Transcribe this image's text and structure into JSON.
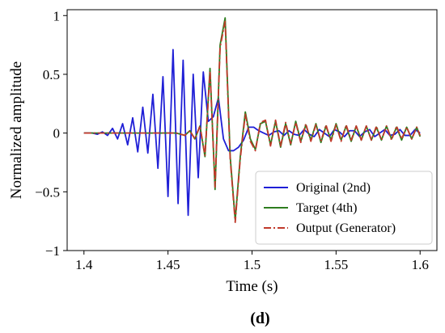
{
  "chart_data": {
    "type": "line",
    "panel_label": "(d)",
    "xlabel": "Time (s)",
    "ylabel": "Normalized amplitude",
    "xlim": [
      1.39,
      1.61
    ],
    "ylim": [
      -1.0,
      1.05
    ],
    "xticks": [
      1.4,
      1.45,
      1.5,
      1.55,
      1.6
    ],
    "xtick_labels": [
      "1.4",
      "1.45",
      "1.5",
      "1.55",
      "1.6"
    ],
    "yticks": [
      -1,
      -0.5,
      0,
      0.5,
      1
    ],
    "ytick_labels": [
      "−1",
      "−0.5",
      "0",
      "0.5",
      "1"
    ],
    "grid": false,
    "legend_position": "lower-right",
    "series": [
      {
        "name": "Original (2nd)",
        "color": "#1f1fd6",
        "style": "solid",
        "x": [
          1.4,
          1.405,
          1.408,
          1.411,
          1.414,
          1.417,
          1.42,
          1.423,
          1.426,
          1.429,
          1.432,
          1.435,
          1.438,
          1.441,
          1.444,
          1.447,
          1.45,
          1.453,
          1.456,
          1.459,
          1.462,
          1.465,
          1.468,
          1.471,
          1.474,
          1.477,
          1.48,
          1.483,
          1.486,
          1.489,
          1.492,
          1.495,
          1.498,
          1.501,
          1.504,
          1.507,
          1.51,
          1.513,
          1.516,
          1.519,
          1.522,
          1.525,
          1.528,
          1.531,
          1.534,
          1.537,
          1.54,
          1.543,
          1.546,
          1.549,
          1.552,
          1.555,
          1.558,
          1.561,
          1.564,
          1.567,
          1.57,
          1.573,
          1.576,
          1.579,
          1.582,
          1.585,
          1.588,
          1.591,
          1.594,
          1.597,
          1.6
        ],
        "y": [
          0.0,
          0.0,
          -0.01,
          0.01,
          -0.02,
          0.04,
          -0.05,
          0.08,
          -0.1,
          0.13,
          -0.16,
          0.22,
          -0.17,
          0.33,
          -0.3,
          0.48,
          -0.54,
          0.71,
          -0.6,
          0.62,
          -0.7,
          0.5,
          -0.38,
          0.52,
          0.1,
          0.14,
          0.3,
          -0.05,
          -0.15,
          -0.15,
          -0.12,
          -0.06,
          0.05,
          0.05,
          0.02,
          0.0,
          -0.02,
          0.01,
          0.02,
          -0.02,
          0.02,
          -0.01,
          -0.02,
          0.03,
          -0.01,
          -0.03,
          0.03,
          0.0,
          -0.03,
          0.03,
          0.01,
          -0.03,
          0.02,
          0.02,
          -0.03,
          0.01,
          0.03,
          -0.03,
          0.0,
          0.03,
          -0.02,
          -0.01,
          0.03,
          -0.02,
          -0.02,
          0.03,
          0.0
        ]
      },
      {
        "name": "Target (4th)",
        "color": "#2e7d1f",
        "style": "solid",
        "x": [
          1.4,
          1.405,
          1.41,
          1.415,
          1.42,
          1.425,
          1.43,
          1.435,
          1.44,
          1.445,
          1.45,
          1.455,
          1.46,
          1.463,
          1.466,
          1.469,
          1.472,
          1.475,
          1.478,
          1.481,
          1.484,
          1.487,
          1.49,
          1.493,
          1.496,
          1.499,
          1.502,
          1.505,
          1.508,
          1.511,
          1.514,
          1.517,
          1.52,
          1.523,
          1.526,
          1.529,
          1.532,
          1.535,
          1.538,
          1.541,
          1.544,
          1.547,
          1.55,
          1.553,
          1.556,
          1.559,
          1.562,
          1.565,
          1.568,
          1.571,
          1.574,
          1.577,
          1.58,
          1.583,
          1.586,
          1.589,
          1.592,
          1.595,
          1.598,
          1.6
        ],
        "y": [
          0.0,
          0.0,
          0.0,
          0.0,
          0.0,
          0.0,
          0.0,
          0.0,
          0.0,
          0.0,
          0.0,
          0.0,
          -0.02,
          0.02,
          -0.05,
          0.06,
          -0.2,
          0.55,
          -0.48,
          0.75,
          0.98,
          -0.2,
          -0.74,
          -0.2,
          0.18,
          -0.05,
          -0.14,
          0.08,
          0.1,
          -0.1,
          0.1,
          -0.12,
          0.08,
          -0.1,
          0.1,
          -0.07,
          0.07,
          -0.06,
          0.08,
          -0.08,
          0.06,
          -0.06,
          0.08,
          -0.06,
          0.06,
          -0.07,
          0.06,
          -0.06,
          0.06,
          -0.06,
          0.05,
          -0.06,
          0.06,
          -0.05,
          0.05,
          -0.06,
          0.05,
          -0.05,
          0.05,
          -0.03
        ]
      },
      {
        "name": "Output (Generator)",
        "color": "#c0392b",
        "style": "dashdot",
        "x": [
          1.4,
          1.405,
          1.41,
          1.415,
          1.42,
          1.425,
          1.43,
          1.435,
          1.44,
          1.445,
          1.45,
          1.455,
          1.46,
          1.463,
          1.466,
          1.469,
          1.472,
          1.475,
          1.478,
          1.481,
          1.484,
          1.487,
          1.49,
          1.493,
          1.496,
          1.499,
          1.502,
          1.505,
          1.508,
          1.511,
          1.514,
          1.517,
          1.52,
          1.523,
          1.526,
          1.529,
          1.532,
          1.535,
          1.538,
          1.541,
          1.544,
          1.547,
          1.55,
          1.553,
          1.556,
          1.559,
          1.562,
          1.565,
          1.568,
          1.571,
          1.574,
          1.577,
          1.58,
          1.583,
          1.586,
          1.589,
          1.592,
          1.595,
          1.598,
          1.6
        ],
        "y": [
          0.0,
          0.0,
          0.0,
          0.0,
          0.0,
          0.0,
          0.0,
          0.0,
          0.0,
          0.0,
          0.0,
          0.0,
          -0.02,
          0.02,
          -0.05,
          0.06,
          -0.19,
          0.53,
          -0.46,
          0.73,
          0.95,
          -0.22,
          -0.76,
          -0.22,
          0.16,
          -0.07,
          -0.15,
          0.09,
          0.11,
          -0.11,
          0.11,
          -0.11,
          0.09,
          -0.09,
          0.09,
          -0.08,
          0.08,
          -0.07,
          0.07,
          -0.07,
          0.07,
          -0.07,
          0.07,
          -0.07,
          0.07,
          -0.06,
          0.06,
          -0.06,
          0.06,
          -0.06,
          0.06,
          -0.06,
          0.06,
          -0.06,
          0.06,
          -0.05,
          0.05,
          -0.05,
          0.05,
          -0.02
        ]
      }
    ]
  }
}
